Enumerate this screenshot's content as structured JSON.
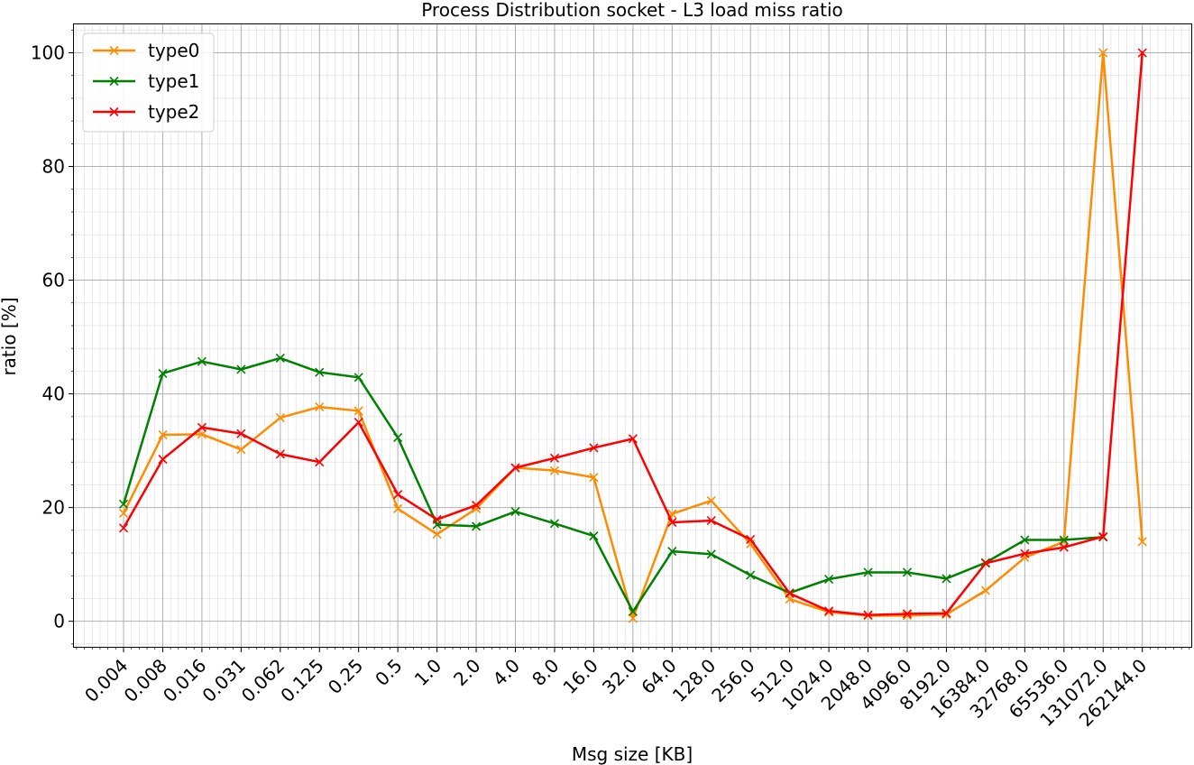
{
  "chart_data": {
    "type": "line",
    "title": "Process Distribution socket - L3 load miss ratio",
    "xlabel": "Msg size [KB]",
    "ylabel": "ratio [%]",
    "ylim": [
      -4.5,
      105
    ],
    "yticks": [
      0,
      20,
      40,
      60,
      80,
      100
    ],
    "grid": true,
    "legend_position": "top-left",
    "marker": "x",
    "categories": [
      "0.004",
      "0.008",
      "0.016",
      "0.031",
      "0.062",
      "0.125",
      "0.25",
      "0.5",
      "1.0",
      "2.0",
      "4.0",
      "8.0",
      "16.0",
      "32.0",
      "64.0",
      "128.0",
      "256.0",
      "512.0",
      "1024.0",
      "2048.0",
      "4096.0",
      "8192.0",
      "16384.0",
      "32768.0",
      "65536.0",
      "131072.0",
      "262144.0"
    ],
    "series": [
      {
        "name": "type0",
        "color": "#ff8c00",
        "values": [
          19.0,
          32.8,
          32.9,
          30.2,
          35.8,
          37.7,
          37.0,
          19.8,
          15.3,
          19.8,
          27.0,
          26.5,
          25.3,
          0.5,
          18.9,
          21.2,
          13.6,
          3.9,
          1.6,
          1.0,
          1.0,
          1.2,
          5.4,
          11.2,
          14.0,
          100.0,
          14.0
        ]
      },
      {
        "name": "type1",
        "color": "#008000",
        "values": [
          20.6,
          43.6,
          45.7,
          44.3,
          46.3,
          43.8,
          42.9,
          32.3,
          17.0,
          16.7,
          19.3,
          17.2,
          15.0,
          1.7,
          12.3,
          11.8,
          8.1,
          5.0,
          7.4,
          8.6,
          8.6,
          7.5,
          10.3,
          14.3,
          14.3,
          14.8,
          null
        ]
      },
      {
        "name": "type2",
        "color": "#ff0000",
        "values": [
          16.4,
          28.5,
          34.1,
          33.0,
          29.4,
          28.0,
          35.0,
          22.3,
          17.9,
          20.4,
          27.0,
          28.7,
          30.5,
          32.1,
          17.4,
          17.7,
          14.4,
          4.9,
          1.8,
          1.1,
          1.3,
          1.4,
          10.2,
          11.9,
          13.0,
          14.9,
          100.0
        ]
      }
    ]
  }
}
